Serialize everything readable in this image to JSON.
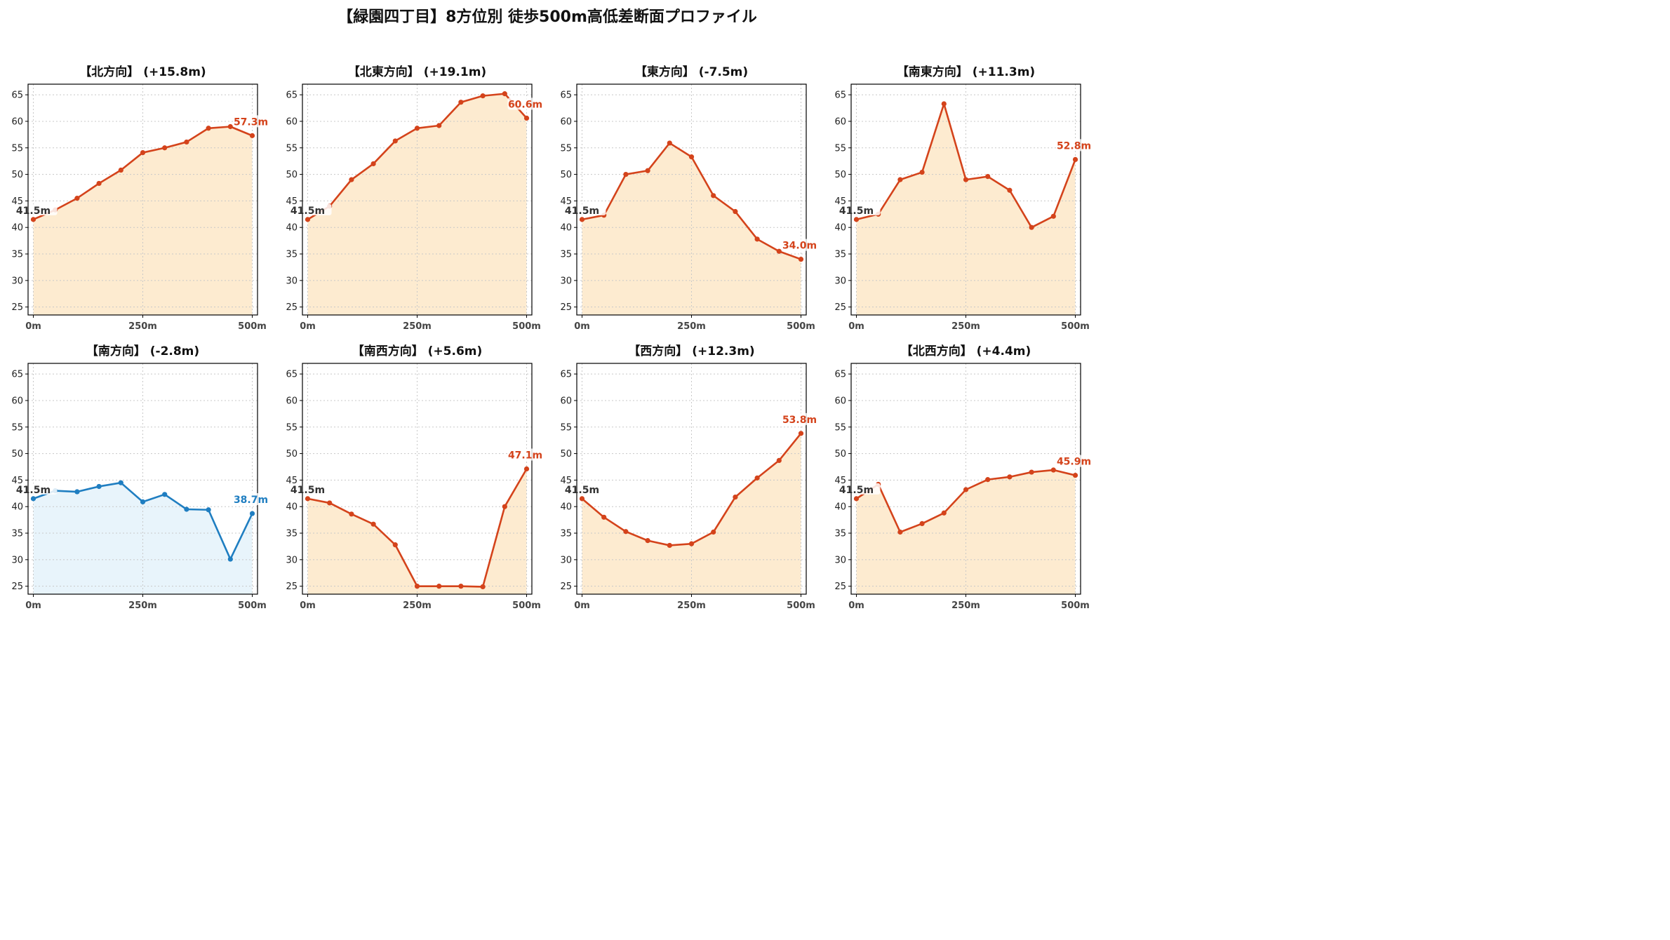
{
  "title": "【緑園四丁目】8方位別 徒歩500m高低差断面プロファイル",
  "colors": {
    "rise_line": "#d4431b",
    "rise_fill": "#fdebd0",
    "fall_line": "#1f7ec1",
    "fall_fill": "#e8f4fb",
    "start_label": "#333333"
  },
  "chart_data": [
    {
      "type": "area",
      "title": "【北方向】 (+15.8m)",
      "x": [
        0,
        50,
        100,
        150,
        200,
        250,
        300,
        350,
        400,
        450,
        500
      ],
      "y": [
        41.5,
        43.3,
        45.5,
        48.3,
        50.8,
        54.1,
        55.0,
        56.1,
        58.7,
        59.0,
        57.3
      ],
      "x_tick_labels": [
        "0m",
        "250m",
        "500m"
      ],
      "y_ticks": [
        25,
        30,
        35,
        40,
        45,
        50,
        55,
        60,
        65
      ],
      "ylim": [
        23.5,
        67
      ],
      "xlim": [
        -12,
        512
      ],
      "start_label": "41.5m",
      "end_label": "57.3m",
      "color_scheme": "rise",
      "grid": true
    },
    {
      "type": "area",
      "title": "【北東方向】 (+19.1m)",
      "x": [
        0,
        50,
        100,
        150,
        200,
        250,
        300,
        350,
        400,
        450,
        500
      ],
      "y": [
        41.5,
        44.0,
        49.0,
        52.0,
        56.3,
        58.7,
        59.2,
        63.6,
        64.8,
        65.2,
        60.6
      ],
      "x_tick_labels": [
        "0m",
        "250m",
        "500m"
      ],
      "y_ticks": [
        25,
        30,
        35,
        40,
        45,
        50,
        55,
        60,
        65
      ],
      "ylim": [
        23.5,
        67
      ],
      "xlim": [
        -12,
        512
      ],
      "start_label": "41.5m",
      "end_label": "60.6m",
      "color_scheme": "rise",
      "grid": true
    },
    {
      "type": "area",
      "title": "【東方向】 (-7.5m)",
      "x": [
        0,
        50,
        100,
        150,
        200,
        250,
        300,
        350,
        400,
        450,
        500
      ],
      "y": [
        41.5,
        42.3,
        50.0,
        50.7,
        55.9,
        53.3,
        46.0,
        43.0,
        37.8,
        35.5,
        34.0
      ],
      "x_tick_labels": [
        "0m",
        "250m",
        "500m"
      ],
      "y_ticks": [
        25,
        30,
        35,
        40,
        45,
        50,
        55,
        60,
        65
      ],
      "ylim": [
        23.5,
        67
      ],
      "xlim": [
        -12,
        512
      ],
      "start_label": "41.5m",
      "end_label": "34.0m",
      "color_scheme": "rise",
      "grid": true
    },
    {
      "type": "area",
      "title": "【南東方向】 (+11.3m)",
      "x": [
        0,
        50,
        100,
        150,
        200,
        250,
        300,
        350,
        400,
        450,
        500
      ],
      "y": [
        41.5,
        42.5,
        49.0,
        50.4,
        63.3,
        49.0,
        49.6,
        47.0,
        40.0,
        42.1,
        52.8
      ],
      "x_tick_labels": [
        "0m",
        "250m",
        "500m"
      ],
      "y_ticks": [
        25,
        30,
        35,
        40,
        45,
        50,
        55,
        60,
        65
      ],
      "ylim": [
        23.5,
        67
      ],
      "xlim": [
        -12,
        512
      ],
      "start_label": "41.5m",
      "end_label": "52.8m",
      "color_scheme": "rise",
      "grid": true
    },
    {
      "type": "area",
      "title": "【南方向】 (-2.8m)",
      "x": [
        0,
        50,
        100,
        150,
        200,
        250,
        300,
        350,
        400,
        450,
        500
      ],
      "y": [
        41.5,
        43.0,
        42.8,
        43.8,
        44.5,
        40.9,
        42.3,
        39.5,
        39.4,
        30.1,
        38.7
      ],
      "x_tick_labels": [
        "0m",
        "250m",
        "500m"
      ],
      "y_ticks": [
        25,
        30,
        35,
        40,
        45,
        50,
        55,
        60,
        65
      ],
      "ylim": [
        23.5,
        67
      ],
      "xlim": [
        -12,
        512
      ],
      "start_label": "41.5m",
      "end_label": "38.7m",
      "color_scheme": "fall",
      "grid": true
    },
    {
      "type": "area",
      "title": "【南西方向】 (+5.6m)",
      "x": [
        0,
        50,
        100,
        150,
        200,
        250,
        300,
        350,
        400,
        450,
        500
      ],
      "y": [
        41.5,
        40.7,
        38.6,
        36.7,
        32.8,
        25.0,
        25.0,
        25.0,
        24.9,
        40.0,
        47.1
      ],
      "x_tick_labels": [
        "0m",
        "250m",
        "500m"
      ],
      "y_ticks": [
        25,
        30,
        35,
        40,
        45,
        50,
        55,
        60,
        65
      ],
      "ylim": [
        23.5,
        67
      ],
      "xlim": [
        -12,
        512
      ],
      "start_label": "41.5m",
      "end_label": "47.1m",
      "color_scheme": "rise",
      "grid": true
    },
    {
      "type": "area",
      "title": "【西方向】 (+12.3m)",
      "x": [
        0,
        50,
        100,
        150,
        200,
        250,
        300,
        350,
        400,
        450,
        500
      ],
      "y": [
        41.5,
        38.0,
        35.3,
        33.6,
        32.7,
        33.0,
        35.2,
        41.8,
        45.4,
        48.7,
        53.8
      ],
      "x_tick_labels": [
        "0m",
        "250m",
        "500m"
      ],
      "y_ticks": [
        25,
        30,
        35,
        40,
        45,
        50,
        55,
        60,
        65
      ],
      "ylim": [
        23.5,
        67
      ],
      "xlim": [
        -12,
        512
      ],
      "start_label": "41.5m",
      "end_label": "53.8m",
      "color_scheme": "rise",
      "grid": true
    },
    {
      "type": "area",
      "title": "【北西方向】 (+4.4m)",
      "x": [
        0,
        50,
        100,
        150,
        200,
        250,
        300,
        350,
        400,
        450,
        500
      ],
      "y": [
        41.5,
        44.2,
        35.2,
        36.8,
        38.8,
        43.2,
        45.1,
        45.6,
        46.5,
        46.9,
        45.9
      ],
      "x_tick_labels": [
        "0m",
        "250m",
        "500m"
      ],
      "y_ticks": [
        25,
        30,
        35,
        40,
        45,
        50,
        55,
        60,
        65
      ],
      "ylim": [
        23.5,
        67
      ],
      "xlim": [
        -12,
        512
      ],
      "start_label": "41.5m",
      "end_label": "45.9m",
      "color_scheme": "rise",
      "grid": true
    }
  ]
}
